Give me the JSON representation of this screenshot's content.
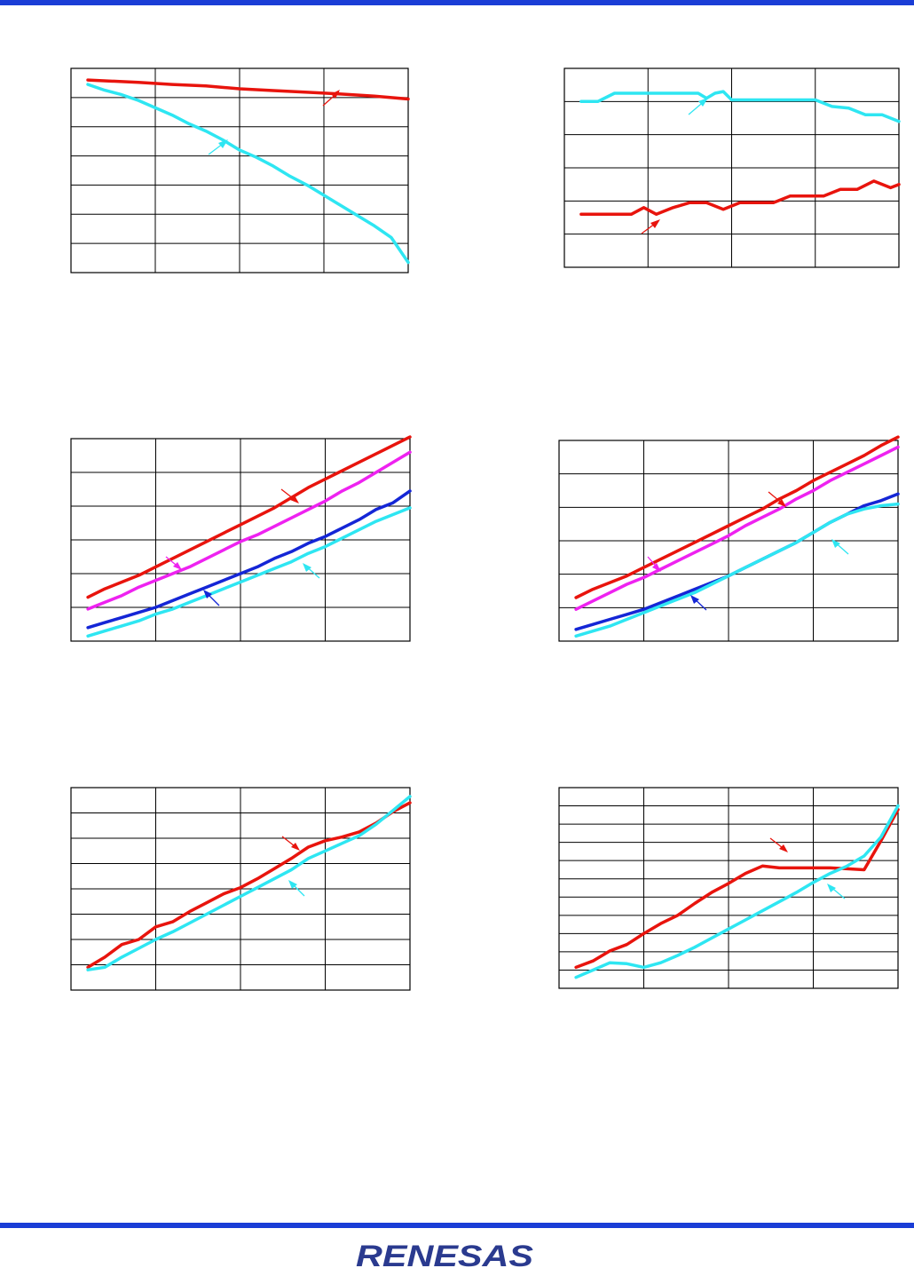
{
  "brand": {
    "logo_text": "RENESAS",
    "accent_color": "#1a3dd6"
  },
  "colors": {
    "red": "#e8140d",
    "cyan": "#2ee6f2",
    "blue": "#1426d6",
    "magenta": "#ee22f0"
  },
  "chart_data": [
    {
      "type": "line",
      "title": "",
      "xlabel": "",
      "ylabel": "",
      "xlim": [
        0,
        4
      ],
      "ylim": [
        0,
        7
      ],
      "grid": true,
      "series": [
        {
          "color": "red",
          "x": [
            0.2,
            0.8,
            1.2,
            1.6,
            2.0,
            2.4,
            2.8,
            3.2,
            3.6,
            4.0
          ],
          "y": [
            6.6,
            6.52,
            6.45,
            6.4,
            6.3,
            6.24,
            6.18,
            6.12,
            6.05,
            5.95
          ]
        },
        {
          "color": "cyan",
          "x": [
            0.2,
            0.4,
            0.6,
            0.8,
            1.0,
            1.2,
            1.4,
            1.6,
            1.8,
            2.0,
            2.2,
            2.4,
            2.6,
            2.8,
            3.0,
            3.2,
            3.4,
            3.6,
            3.8,
            4.0
          ],
          "y": [
            6.45,
            6.25,
            6.1,
            5.9,
            5.65,
            5.4,
            5.1,
            4.85,
            4.55,
            4.2,
            3.95,
            3.65,
            3.3,
            3.0,
            2.65,
            2.3,
            1.95,
            1.6,
            1.2,
            0.35
          ]
        }
      ]
    },
    {
      "type": "line",
      "title": "",
      "xlabel": "",
      "ylabel": "",
      "xlim": [
        0,
        4
      ],
      "ylim": [
        0,
        6
      ],
      "grid": true,
      "series": [
        {
          "color": "cyan",
          "x": [
            0.2,
            0.4,
            0.6,
            0.8,
            1.0,
            1.2,
            1.4,
            1.6,
            1.7,
            1.8,
            1.9,
            2.0,
            2.1,
            2.2,
            2.4,
            2.6,
            2.8,
            3.0,
            3.2,
            3.4,
            3.6,
            3.8,
            4.0
          ],
          "y": [
            5.0,
            5.0,
            5.25,
            5.25,
            5.25,
            5.25,
            5.25,
            5.25,
            5.1,
            5.25,
            5.3,
            5.05,
            5.05,
            5.05,
            5.05,
            5.05,
            5.05,
            5.05,
            4.85,
            4.8,
            4.6,
            4.6,
            4.4
          ]
        },
        {
          "color": "red",
          "x": [
            0.2,
            0.4,
            0.6,
            0.8,
            0.95,
            1.1,
            1.3,
            1.5,
            1.7,
            1.9,
            2.1,
            2.3,
            2.5,
            2.7,
            2.9,
            3.1,
            3.3,
            3.5,
            3.7,
            3.9,
            4.0
          ],
          "y": [
            1.6,
            1.6,
            1.6,
            1.6,
            1.8,
            1.6,
            1.8,
            1.95,
            1.95,
            1.75,
            1.95,
            1.95,
            1.95,
            2.15,
            2.15,
            2.15,
            2.35,
            2.35,
            2.6,
            2.4,
            2.5
          ]
        }
      ]
    },
    {
      "type": "line",
      "title": "",
      "xlabel": "",
      "ylabel": "",
      "xlim": [
        0,
        4
      ],
      "ylim": [
        0,
        6
      ],
      "grid": true,
      "series": [
        {
          "color": "red",
          "x": [
            0.2,
            0.4,
            0.6,
            0.8,
            1.0,
            1.2,
            1.4,
            1.6,
            1.8,
            2.0,
            2.2,
            2.4,
            2.6,
            2.8,
            3.0,
            3.2,
            3.4,
            3.6,
            3.8,
            4.0
          ],
          "y": [
            1.3,
            1.55,
            1.75,
            1.95,
            2.2,
            2.45,
            2.7,
            2.95,
            3.2,
            3.45,
            3.7,
            3.95,
            4.25,
            4.55,
            4.8,
            5.05,
            5.3,
            5.55,
            5.8,
            6.05
          ]
        },
        {
          "color": "magenta",
          "x": [
            0.2,
            0.4,
            0.6,
            0.8,
            1.0,
            1.2,
            1.4,
            1.6,
            1.8,
            2.0,
            2.2,
            2.4,
            2.6,
            2.8,
            3.0,
            3.2,
            3.4,
            3.6,
            3.8,
            4.0
          ],
          "y": [
            0.95,
            1.15,
            1.35,
            1.6,
            1.8,
            2.0,
            2.2,
            2.45,
            2.7,
            2.95,
            3.15,
            3.4,
            3.65,
            3.9,
            4.15,
            4.45,
            4.7,
            5.0,
            5.3,
            5.6
          ]
        },
        {
          "color": "blue",
          "x": [
            0.2,
            0.4,
            0.6,
            0.8,
            1.0,
            1.2,
            1.4,
            1.6,
            1.8,
            2.0,
            2.2,
            2.4,
            2.6,
            2.8,
            3.0,
            3.2,
            3.4,
            3.6,
            3.8,
            4.0
          ],
          "y": [
            0.4,
            0.55,
            0.7,
            0.85,
            1.0,
            1.2,
            1.4,
            1.6,
            1.8,
            2.0,
            2.2,
            2.45,
            2.65,
            2.9,
            3.1,
            3.35,
            3.6,
            3.9,
            4.1,
            4.45
          ]
        },
        {
          "color": "cyan",
          "x": [
            0.2,
            0.4,
            0.6,
            0.8,
            1.0,
            1.2,
            1.4,
            1.6,
            1.8,
            2.0,
            2.2,
            2.4,
            2.6,
            2.8,
            3.0,
            3.2,
            3.4,
            3.6,
            3.8,
            4.0
          ],
          "y": [
            0.15,
            0.3,
            0.45,
            0.6,
            0.8,
            0.95,
            1.15,
            1.35,
            1.55,
            1.75,
            1.95,
            2.15,
            2.35,
            2.6,
            2.8,
            3.05,
            3.3,
            3.55,
            3.75,
            3.95
          ]
        }
      ]
    },
    {
      "type": "line",
      "title": "",
      "xlabel": "",
      "ylabel": "",
      "xlim": [
        0,
        4
      ],
      "ylim": [
        0,
        6
      ],
      "grid": true,
      "series": [
        {
          "color": "red",
          "x": [
            0.2,
            0.4,
            0.6,
            0.8,
            1.0,
            1.2,
            1.4,
            1.6,
            1.8,
            2.0,
            2.2,
            2.4,
            2.6,
            2.8,
            3.0,
            3.2,
            3.4,
            3.6,
            3.8,
            4.0
          ],
          "y": [
            1.3,
            1.55,
            1.75,
            1.95,
            2.2,
            2.45,
            2.7,
            2.95,
            3.2,
            3.45,
            3.7,
            3.95,
            4.25,
            4.5,
            4.8,
            5.05,
            5.3,
            5.55,
            5.85,
            6.1
          ]
        },
        {
          "color": "magenta",
          "x": [
            0.2,
            0.4,
            0.6,
            0.8,
            1.0,
            1.2,
            1.4,
            1.6,
            1.8,
            2.0,
            2.2,
            2.4,
            2.6,
            2.8,
            3.0,
            3.2,
            3.4,
            3.6,
            3.8,
            4.0
          ],
          "y": [
            0.95,
            1.2,
            1.45,
            1.7,
            1.9,
            2.15,
            2.4,
            2.65,
            2.9,
            3.15,
            3.45,
            3.7,
            3.95,
            4.25,
            4.5,
            4.8,
            5.05,
            5.3,
            5.55,
            5.8
          ]
        },
        {
          "color": "blue",
          "x": [
            0.2,
            0.4,
            0.6,
            0.8,
            1.0,
            1.2,
            1.4,
            1.6,
            1.8,
            2.0,
            2.2,
            2.4,
            2.6,
            2.8,
            3.0,
            3.2,
            3.4,
            3.6,
            3.8,
            4.0
          ],
          "y": [
            0.35,
            0.5,
            0.65,
            0.8,
            0.95,
            1.15,
            1.35,
            1.55,
            1.75,
            1.95,
            2.2,
            2.45,
            2.7,
            2.95,
            3.25,
            3.55,
            3.8,
            4.05,
            4.2,
            4.4
          ]
        },
        {
          "color": "cyan",
          "x": [
            0.2,
            0.4,
            0.6,
            0.8,
            1.0,
            1.2,
            1.4,
            1.6,
            1.8,
            2.0,
            2.2,
            2.4,
            2.6,
            2.8,
            3.0,
            3.2,
            3.4,
            3.6,
            3.8,
            4.0
          ],
          "y": [
            0.15,
            0.3,
            0.45,
            0.65,
            0.85,
            1.05,
            1.25,
            1.45,
            1.7,
            1.95,
            2.2,
            2.45,
            2.7,
            2.95,
            3.25,
            3.55,
            3.8,
            3.95,
            4.05,
            4.1
          ]
        }
      ]
    },
    {
      "type": "line",
      "title": "",
      "xlabel": "",
      "ylabel": "",
      "xlim": [
        0,
        4
      ],
      "ylim": [
        0,
        8
      ],
      "grid": true,
      "series": [
        {
          "color": "red",
          "x": [
            0.2,
            0.4,
            0.6,
            0.8,
            1.0,
            1.2,
            1.4,
            1.6,
            1.8,
            2.0,
            2.2,
            2.4,
            2.6,
            2.8,
            3.0,
            3.2,
            3.4,
            3.6,
            3.8,
            4.0
          ],
          "y": [
            0.9,
            1.3,
            1.8,
            2.0,
            2.5,
            2.7,
            3.1,
            3.45,
            3.8,
            4.05,
            4.4,
            4.8,
            5.2,
            5.65,
            5.9,
            6.05,
            6.25,
            6.6,
            7.05,
            7.4
          ]
        },
        {
          "color": "cyan",
          "x": [
            0.2,
            0.4,
            0.6,
            0.8,
            1.0,
            1.2,
            1.4,
            1.6,
            1.8,
            2.0,
            2.2,
            2.4,
            2.6,
            2.8,
            3.0,
            3.2,
            3.4,
            3.6,
            3.8,
            4.0
          ],
          "y": [
            0.8,
            0.9,
            1.3,
            1.65,
            2.0,
            2.3,
            2.65,
            3.0,
            3.35,
            3.7,
            4.05,
            4.4,
            4.75,
            5.2,
            5.5,
            5.8,
            6.1,
            6.55,
            7.1,
            7.65
          ]
        }
      ]
    },
    {
      "type": "line",
      "title": "",
      "xlabel": "",
      "ylabel": "",
      "xlim": [
        0,
        4
      ],
      "ylim": [
        0,
        11
      ],
      "grid": true,
      "series": [
        {
          "color": "red",
          "x": [
            0.2,
            0.4,
            0.6,
            0.8,
            1.0,
            1.2,
            1.4,
            1.6,
            1.8,
            2.0,
            2.2,
            2.4,
            2.6,
            2.8,
            3.0,
            3.2,
            3.4,
            3.6,
            3.8,
            4.0
          ],
          "y": [
            1.15,
            1.5,
            2.05,
            2.4,
            3.0,
            3.55,
            4.0,
            4.65,
            5.25,
            5.75,
            6.3,
            6.7,
            6.6,
            6.6,
            6.6,
            6.6,
            6.55,
            6.5,
            8.1,
            9.8
          ]
        },
        {
          "color": "cyan",
          "x": [
            0.2,
            0.4,
            0.6,
            0.8,
            1.0,
            1.2,
            1.4,
            1.6,
            1.8,
            2.0,
            2.2,
            2.4,
            2.6,
            2.8,
            3.0,
            3.2,
            3.4,
            3.6,
            3.8,
            4.0
          ],
          "y": [
            0.6,
            1.0,
            1.4,
            1.35,
            1.15,
            1.4,
            1.8,
            2.25,
            2.75,
            3.25,
            3.75,
            4.25,
            4.75,
            5.25,
            5.8,
            6.3,
            6.7,
            7.25,
            8.3,
            10.0
          ]
        }
      ]
    }
  ]
}
